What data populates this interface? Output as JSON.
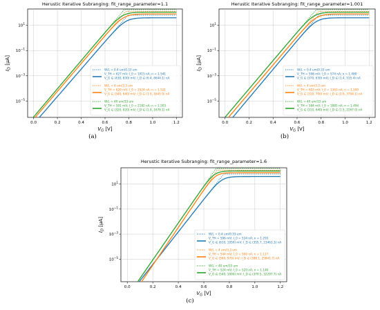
{
  "panels": [
    {
      "caption": "(a)",
      "title": "Herustic Iterative Subranging: fit_range_parameter=1.1",
      "xlabel": "V_G [V]",
      "ylabel": "I_D [μA]",
      "legend": [
        {
          "series": "W/L = 0.4 um/0.33 um",
          "fit1": "V_TH = 627 mV; I_0 = 1015 nA; n = 1.541",
          "fit2": "V_G ∈ (430, 830) mV; I_D ∈ (6.4, 6644.1) nA"
        },
        {
          "series": "W/L = 4 um/3.3 um",
          "fit1": "V_TH = 620 mV; I_0 = 2524 nA; n = 1.521",
          "fit2": "V_G ∈ (340, 640) mV; I_D ∈ (1.9, 1645.9) nA"
        },
        {
          "series": "W/L = 40 um/33 um",
          "fit1": "V_TH = 591 mV; I_0 = 2182 nA; n = 1.503",
          "fit2": "V_G ∈ (320, 620) mV; I_D ∈ (1.9, 1676.1) nA"
        }
      ]
    },
    {
      "caption": "(b)",
      "title": "Herustic Iterative Subranging: fit_range_parameter=1.001",
      "xlabel": "V_G [V]",
      "ylabel": "I_D [μA]",
      "legend": [
        {
          "series": "W/L = 0.4 um/0.33 um",
          "fit1": "V_TH = 598 mV; I_0 = 574 nA; n = 1.480",
          "fit2": "V_G ∈ (370, 630) mV; I_D ∈ (1.4, 515.4) nA"
        },
        {
          "series": "W/L = 4 um/3.3 um",
          "fit1": "V_TH = 603 mV; I_0 = 1363 nA; n = 1.500",
          "fit2": "V_G ∈ (310, 700) mV; I_D ∈ (0.9, 3794.1) nA"
        },
        {
          "series": "W/L = 40 um/33 um",
          "fit1": "V_TH = 584 mV; I_0 = 1885 nA; n = 1.494",
          "fit2": "V_G ∈ (310, 640) mV; I_D ∈ (1.5, 2267.0) nA"
        }
      ]
    },
    {
      "caption": "(c)",
      "title": "Herustic Iterative Subranging: fit_range_parameter=1.6",
      "xlabel": "V_G [V]",
      "ylabel": "I_D [μA]",
      "legend": [
        {
          "series": "W/L = 0.4 um/0.33 um",
          "fit1": "V_TH = 596 mV; I_0 = 534 nA; n = 1.293",
          "fit2": "V_G ∈ (610, 1050) mV; I_D ∈ (355.7, 23463.3) nA"
        },
        {
          "series": "W/L = 4 um/3.3 um",
          "fit1": "V_TH = 544 mV; I_0 = 500 nA; n = 1.117",
          "fit2": "V_G ∈ (560, 970) mV; I_D ∈ (388.1, 25841.7) nA"
        },
        {
          "series": "W/L = 40 um/33 um",
          "fit1": "V_TH = 524 mV; I_0 = 520 nA; n = 1.140",
          "fit2": "V_G ∈ (540, 1000) mV; I_D ∈ (379.5, 32297.7) nA"
        }
      ]
    }
  ],
  "chart_data": [
    {
      "type": "line",
      "title": "Herustic Iterative Subranging: fit_range_parameter=1.1",
      "xlabel": "V_G [V]",
      "ylabel": "I_D [μA]",
      "xlim": [
        -0.05,
        1.25
      ],
      "ylim_log10": [
        -6.3,
        2.3
      ],
      "yscale": "log",
      "xticks": [
        0.0,
        0.2,
        0.4,
        0.6,
        0.8,
        1.0,
        1.2
      ],
      "yticks": [
        "10^-5",
        "10^-3",
        "10^-1",
        "10^1"
      ],
      "grid": true,
      "legend_position": "lower right",
      "colors": [
        "#1f77b4",
        "#ff7f0e",
        "#2ca02c"
      ],
      "series": [
        {
          "name": "W/L = 0.4 um/0.33 um",
          "vth": 0.627,
          "n": 1.541,
          "i0": 1.015,
          "x": [
            0.0,
            0.2,
            0.4,
            0.6,
            0.8,
            1.0,
            1.2
          ],
          "y_log10": [
            -6.1,
            -3.9,
            -1.8,
            0.3,
            1.2,
            1.5,
            1.6
          ]
        },
        {
          "name": "W/L = 4 um/3.3 um",
          "vth": 0.62,
          "n": 1.521,
          "i0": 2.524,
          "x": [
            0.0,
            0.2,
            0.4,
            0.6,
            0.8,
            1.0,
            1.2
          ],
          "y_log10": [
            -5.6,
            -3.4,
            -1.3,
            0.8,
            1.6,
            1.8,
            1.9
          ]
        },
        {
          "name": "W/L = 40 um/33 um",
          "vth": 0.591,
          "n": 1.503,
          "i0": 2.182,
          "x": [
            0.0,
            0.2,
            0.4,
            0.6,
            0.8,
            1.0,
            1.2
          ],
          "y_log10": [
            -5.4,
            -3.2,
            -1.1,
            0.9,
            1.7,
            1.9,
            2.0
          ]
        }
      ]
    },
    {
      "type": "line",
      "title": "Herustic Iterative Subranging: fit_range_parameter=1.001",
      "xlabel": "V_G [V]",
      "ylabel": "I_D [μA]",
      "xlim": [
        -0.05,
        1.25
      ],
      "ylim_log10": [
        -6.3,
        2.3
      ],
      "yscale": "log",
      "xticks": [
        0.0,
        0.2,
        0.4,
        0.6,
        0.8,
        1.0,
        1.2
      ],
      "yticks": [
        "10^-5",
        "10^-3",
        "10^-1",
        "10^1"
      ],
      "grid": true,
      "legend_position": "lower right",
      "colors": [
        "#1f77b4",
        "#ff7f0e",
        "#2ca02c"
      ],
      "series": [
        {
          "name": "W/L = 0.4 um/0.33 um",
          "vth": 0.598,
          "n": 1.48,
          "i0": 0.574
        },
        {
          "name": "W/L = 4 um/3.3 um",
          "vth": 0.603,
          "n": 1.5,
          "i0": 1.363
        },
        {
          "name": "W/L = 40 um/33 um",
          "vth": 0.584,
          "n": 1.494,
          "i0": 1.885
        }
      ]
    },
    {
      "type": "line",
      "title": "Herustic Iterative Subranging: fit_range_parameter=1.6",
      "xlabel": "V_G [V]",
      "ylabel": "I_D [μA]",
      "xlim": [
        -0.05,
        1.25
      ],
      "ylim_log10": [
        -6.8,
        2.3
      ],
      "yscale": "log",
      "xticks": [
        0.0,
        0.2,
        0.4,
        0.6,
        0.8,
        1.0,
        1.2
      ],
      "yticks": [
        "10^-5",
        "10^-3",
        "10^-1",
        "10^1"
      ],
      "grid": true,
      "legend_position": "lower right",
      "colors": [
        "#1f77b4",
        "#ff7f0e",
        "#2ca02c"
      ],
      "series": [
        {
          "name": "W/L = 0.4 um/0.33 um",
          "vth": 0.596,
          "n": 1.293,
          "i0": 0.534
        },
        {
          "name": "W/L = 4 um/3.3 um",
          "vth": 0.544,
          "n": 1.117,
          "i0": 0.5
        },
        {
          "name": "W/L = 40 um/33 um",
          "vth": 0.524,
          "n": 1.14,
          "i0": 0.52
        }
      ]
    }
  ]
}
